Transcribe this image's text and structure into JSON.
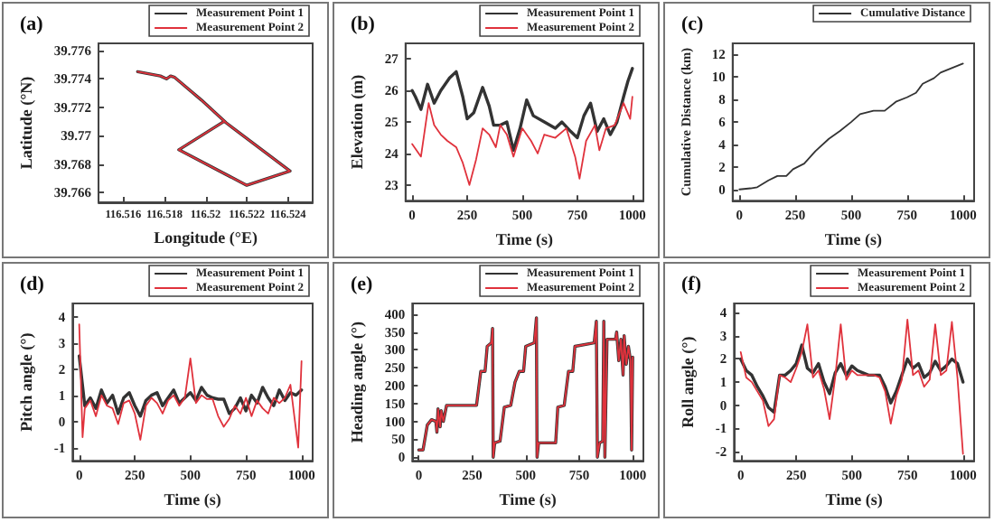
{
  "chart_data": [
    {
      "type": "line",
      "title": "(a)",
      "xlabel": "Longitude (°E)",
      "ylabel": "Latitude (°N)",
      "xlim": [
        116.5148,
        116.5252
      ],
      "ylim": [
        39.7653,
        39.7765
      ],
      "xticks": [
        116.516,
        116.518,
        116.52,
        116.522,
        116.524
      ],
      "yticks": [
        39.766,
        39.768,
        39.77,
        39.772,
        39.774,
        39.776
      ],
      "legend": "top right",
      "marker": "none",
      "line_style": "solid",
      "series": [
        {
          "name": "Measurement Point 1",
          "color": "#333333",
          "x": [
            116.5167,
            116.5178,
            116.5181,
            116.5183,
            116.5185,
            116.5198,
            116.521,
            116.5241,
            116.522,
            116.5187,
            116.5209
          ],
          "values": [
            39.7745,
            39.7742,
            39.774,
            39.7742,
            39.7741,
            39.7725,
            39.7709,
            39.7675,
            39.7665,
            39.769,
            39.771
          ]
        },
        {
          "name": "Measurement Point 2",
          "color": "#e0323c",
          "x": [
            116.5167,
            116.5178,
            116.5181,
            116.5183,
            116.5185,
            116.5198,
            116.521,
            116.5241,
            116.522,
            116.5187,
            116.5209
          ],
          "values": [
            39.7745,
            39.7742,
            39.774,
            39.7742,
            39.7741,
            39.7725,
            39.7709,
            39.7675,
            39.7665,
            39.769,
            39.771
          ]
        }
      ]
    },
    {
      "type": "line",
      "title": "(b)",
      "xlabel": "Time (s)",
      "ylabel": "Elevation (m)",
      "xlim": [
        -30,
        1050
      ],
      "ylim": [
        22.5,
        27.5
      ],
      "xticks": [
        0,
        250,
        500,
        750,
        1000
      ],
      "yticks": [
        23,
        24,
        25,
        26,
        27
      ],
      "legend": "top right",
      "marker": "none",
      "line_style": "solid",
      "series": [
        {
          "name": "Measurement Point 1",
          "color": "#333333",
          "x": [
            0,
            15,
            40,
            70,
            100,
            130,
            170,
            200,
            230,
            250,
            280,
            320,
            350,
            370,
            400,
            430,
            460,
            490,
            520,
            550,
            600,
            650,
            680,
            720,
            750,
            780,
            810,
            840,
            870,
            900,
            930,
            960,
            980,
            1000
          ],
          "values": [
            26.0,
            25.8,
            25.4,
            26.2,
            25.6,
            26.0,
            26.4,
            26.6,
            25.8,
            25.1,
            25.3,
            26.1,
            25.5,
            24.9,
            24.9,
            25.0,
            24.1,
            24.8,
            25.7,
            25.2,
            25.0,
            24.8,
            25.0,
            24.7,
            24.5,
            25.2,
            25.6,
            24.7,
            25.1,
            24.6,
            25.0,
            25.8,
            26.3,
            26.7
          ]
        },
        {
          "name": "Measurement Point 2",
          "color": "#e0323c",
          "x": [
            0,
            20,
            40,
            75,
            100,
            130,
            160,
            200,
            230,
            260,
            290,
            320,
            350,
            380,
            400,
            430,
            460,
            500,
            540,
            570,
            600,
            650,
            700,
            740,
            760,
            790,
            830,
            850,
            880,
            920,
            960,
            990,
            1000
          ],
          "values": [
            24.3,
            24.1,
            23.9,
            25.6,
            24.9,
            24.6,
            24.4,
            24.2,
            23.7,
            23.0,
            23.8,
            24.8,
            24.6,
            24.2,
            24.9,
            24.6,
            23.9,
            24.8,
            24.4,
            24.0,
            24.6,
            24.5,
            24.8,
            23.9,
            23.2,
            24.4,
            24.9,
            24.1,
            24.8,
            24.9,
            25.6,
            25.1,
            25.8
          ]
        }
      ]
    },
    {
      "type": "line",
      "title": "(c)",
      "xlabel": "Time (s)",
      "ylabel": "Cumulative Distance (km)",
      "xlim": [
        -30,
        1050
      ],
      "ylim": [
        -1,
        13
      ],
      "xticks": [
        0,
        250,
        500,
        750,
        1000
      ],
      "yticks": [
        0,
        2,
        4,
        6,
        8,
        10,
        12
      ],
      "legend": "top right",
      "marker": "none",
      "line_style": "solid",
      "series": [
        {
          "name": "Cumulative Distance",
          "color": "#333333",
          "x": [
            0,
            50,
            80,
            130,
            170,
            210,
            240,
            290,
            340,
            400,
            450,
            500,
            540,
            600,
            650,
            700,
            750,
            790,
            820,
            870,
            900,
            950,
            1000
          ],
          "values": [
            0,
            0.1,
            0.2,
            0.8,
            1.2,
            1.2,
            1.8,
            2.3,
            3.4,
            4.5,
            5.2,
            6.0,
            6.7,
            7.0,
            7.0,
            7.8,
            8.2,
            8.6,
            9.4,
            9.9,
            10.4,
            10.8,
            11.2
          ]
        }
      ]
    },
    {
      "type": "line",
      "title": "(d)",
      "xlabel": "Time (s)",
      "ylabel": "Pitch angle (°)",
      "xlim": [
        -30,
        1050
      ],
      "ylim": [
        -1.5,
        4.5
      ],
      "xticks": [
        0,
        250,
        500,
        750,
        1000
      ],
      "yticks": [
        -1,
        0,
        1,
        2,
        3,
        4
      ],
      "legend": "top right",
      "marker": "none",
      "line_style": "solid",
      "series": [
        {
          "name": "Measurement Point 1",
          "color": "#333333",
          "x": [
            0,
            25,
            50,
            75,
            100,
            125,
            150,
            175,
            200,
            225,
            250,
            275,
            300,
            325,
            350,
            375,
            400,
            425,
            450,
            475,
            500,
            525,
            550,
            575,
            600,
            625,
            650,
            675,
            700,
            725,
            750,
            775,
            800,
            825,
            850,
            875,
            900,
            925,
            950,
            975,
            1000
          ],
          "values": [
            2.5,
            0.6,
            0.9,
            0.5,
            1.2,
            0.7,
            1.0,
            0.3,
            0.9,
            1.1,
            0.6,
            0.2,
            0.8,
            1.0,
            1.1,
            0.6,
            0.9,
            1.2,
            0.7,
            0.9,
            1.1,
            0.8,
            1.3,
            1.0,
            0.9,
            0.85,
            0.85,
            0.3,
            0.5,
            0.9,
            0.4,
            1.0,
            0.7,
            1.3,
            0.9,
            0.6,
            1.2,
            0.8,
            1.1,
            1.0,
            1.2
          ]
        },
        {
          "name": "Measurement Point 2",
          "color": "#e0323c",
          "x": [
            0,
            15,
            25,
            50,
            75,
            100,
            125,
            150,
            175,
            200,
            225,
            250,
            275,
            300,
            325,
            350,
            375,
            400,
            425,
            450,
            475,
            500,
            525,
            550,
            575,
            600,
            625,
            650,
            675,
            700,
            725,
            750,
            775,
            800,
            825,
            850,
            875,
            900,
            925,
            950,
            985,
            1000
          ],
          "values": [
            3.7,
            -0.6,
            0.5,
            0.8,
            0.2,
            1.0,
            0.6,
            0.5,
            -0.1,
            0.7,
            0.8,
            0.3,
            -0.7,
            0.6,
            0.9,
            0.7,
            0.3,
            0.8,
            1.0,
            0.6,
            0.9,
            2.4,
            0.7,
            1.0,
            0.85,
            0.85,
            0.2,
            -0.2,
            0.1,
            0.6,
            0.3,
            0.9,
            0.2,
            0.8,
            0.5,
            0.3,
            0.9,
            0.7,
            0.9,
            1.4,
            -1.0,
            2.3
          ]
        }
      ]
    },
    {
      "type": "line",
      "title": "(e)",
      "xlabel": "Time (s)",
      "ylabel": "Heading angle (°)",
      "xlim": [
        -30,
        1050
      ],
      "ylim": [
        -10,
        430
      ],
      "xticks": [
        0,
        250,
        500,
        750,
        1000
      ],
      "yticks": [
        0,
        50,
        100,
        150,
        200,
        250,
        300,
        350,
        400
      ],
      "legend": "top right",
      "marker": "none",
      "line_style": "solid",
      "series": [
        {
          "name": "Measurement Point 1",
          "color": "#333333",
          "x": [
            0,
            20,
            40,
            60,
            80,
            85,
            90,
            100,
            105,
            115,
            130,
            270,
            290,
            310,
            320,
            340,
            345,
            348,
            355,
            380,
            400,
            430,
            450,
            470,
            490,
            500,
            540,
            550,
            553,
            560,
            640,
            650,
            680,
            700,
            720,
            730,
            820,
            830,
            835,
            845,
            860,
            865,
            870,
            880,
            920,
            925,
            935,
            945,
            955,
            960,
            970,
            980,
            990,
            995,
            1000
          ],
          "values": [
            20,
            20,
            90,
            105,
            100,
            70,
            135,
            85,
            130,
            100,
            145,
            145,
            240,
            240,
            310,
            320,
            360,
            0,
            40,
            45,
            140,
            145,
            210,
            240,
            240,
            310,
            320,
            390,
            0,
            40,
            40,
            140,
            145,
            240,
            240,
            310,
            320,
            380,
            0,
            40,
            45,
            380,
            0,
            330,
            330,
            350,
            270,
            330,
            230,
            340,
            260,
            310,
            270,
            20,
            280
          ]
        },
        {
          "name": "Measurement Point 2",
          "color": "#e0323c",
          "x": [
            0,
            20,
            40,
            60,
            80,
            85,
            90,
            100,
            105,
            115,
            130,
            270,
            290,
            310,
            320,
            340,
            345,
            348,
            355,
            380,
            400,
            430,
            450,
            470,
            490,
            500,
            540,
            550,
            553,
            560,
            640,
            650,
            680,
            700,
            720,
            730,
            820,
            830,
            835,
            845,
            860,
            865,
            870,
            880,
            920,
            925,
            935,
            945,
            955,
            960,
            970,
            980,
            990,
            995,
            1000
          ],
          "values": [
            20,
            20,
            90,
            105,
            100,
            70,
            135,
            85,
            130,
            100,
            145,
            145,
            240,
            240,
            310,
            320,
            360,
            0,
            40,
            45,
            140,
            145,
            210,
            240,
            240,
            310,
            320,
            390,
            0,
            40,
            40,
            140,
            145,
            240,
            240,
            310,
            320,
            380,
            0,
            40,
            45,
            380,
            0,
            330,
            330,
            350,
            270,
            330,
            230,
            340,
            260,
            310,
            270,
            20,
            280
          ]
        }
      ]
    },
    {
      "type": "line",
      "title": "(f)",
      "xlabel": "Time (s)",
      "ylabel": "Roll angle (°)",
      "xlim": [
        -30,
        1050
      ],
      "ylim": [
        -2.4,
        4.4
      ],
      "xticks": [
        0,
        250,
        500,
        750,
        1000
      ],
      "yticks": [
        -2,
        -1,
        0,
        1,
        2,
        3,
        4
      ],
      "legend": "top right",
      "marker": "none",
      "line_style": "solid",
      "series": [
        {
          "name": "Measurement Point 1",
          "color": "#333333",
          "x": [
            0,
            25,
            50,
            75,
            100,
            125,
            150,
            175,
            200,
            225,
            250,
            275,
            300,
            325,
            350,
            375,
            400,
            425,
            450,
            475,
            500,
            525,
            550,
            575,
            600,
            625,
            650,
            675,
            700,
            725,
            750,
            775,
            800,
            825,
            850,
            875,
            900,
            925,
            950,
            975,
            1000
          ],
          "values": [
            2.0,
            1.5,
            1.3,
            0.8,
            0.4,
            -0.1,
            -0.3,
            1.3,
            1.3,
            1.5,
            1.8,
            2.6,
            1.6,
            1.4,
            1.8,
            1.0,
            0.5,
            1.4,
            1.8,
            1.3,
            1.7,
            1.5,
            1.4,
            1.3,
            1.3,
            1.3,
            0.8,
            0.1,
            0.6,
            1.3,
            2.0,
            1.6,
            1.8,
            1.2,
            1.4,
            1.9,
            1.5,
            1.7,
            2.0,
            1.8,
            1.0
          ]
        },
        {
          "name": "Measurement Point 2",
          "color": "#e0323c",
          "x": [
            0,
            25,
            50,
            75,
            100,
            125,
            150,
            175,
            200,
            225,
            250,
            275,
            300,
            325,
            350,
            375,
            400,
            425,
            450,
            475,
            500,
            525,
            550,
            575,
            600,
            625,
            650,
            675,
            700,
            725,
            750,
            775,
            800,
            825,
            850,
            875,
            900,
            925,
            950,
            975,
            1000
          ],
          "values": [
            2.3,
            1.2,
            1.0,
            0.6,
            0.2,
            -0.9,
            -0.6,
            1.3,
            1.2,
            1.0,
            1.6,
            2.3,
            3.5,
            1.2,
            1.5,
            0.7,
            -0.6,
            1.2,
            3.5,
            1.1,
            1.5,
            1.3,
            1.3,
            1.3,
            1.3,
            1.2,
            0.6,
            -0.8,
            0.4,
            1.1,
            3.7,
            1.3,
            1.5,
            0.8,
            1.1,
            3.5,
            1.3,
            1.5,
            3.6,
            1.2,
            -2.1
          ]
        }
      ]
    }
  ]
}
